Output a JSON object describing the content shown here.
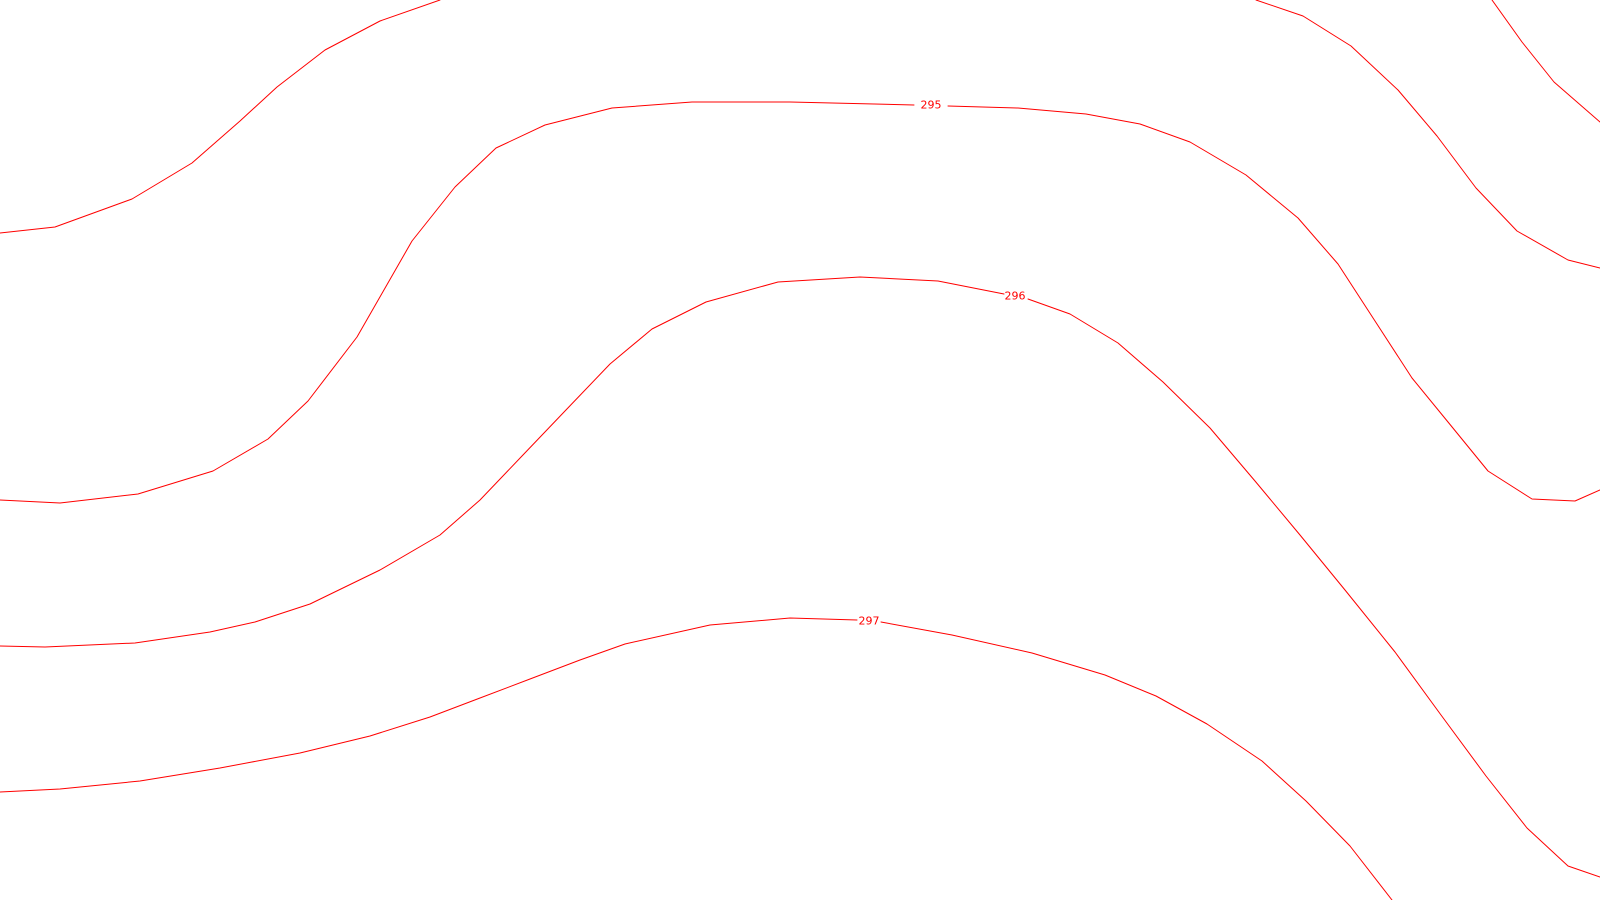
{
  "map": {
    "contour_color": "#ff0000",
    "background_color": "#ffffff",
    "contour_labels": [
      "295",
      "296",
      "297"
    ]
  }
}
